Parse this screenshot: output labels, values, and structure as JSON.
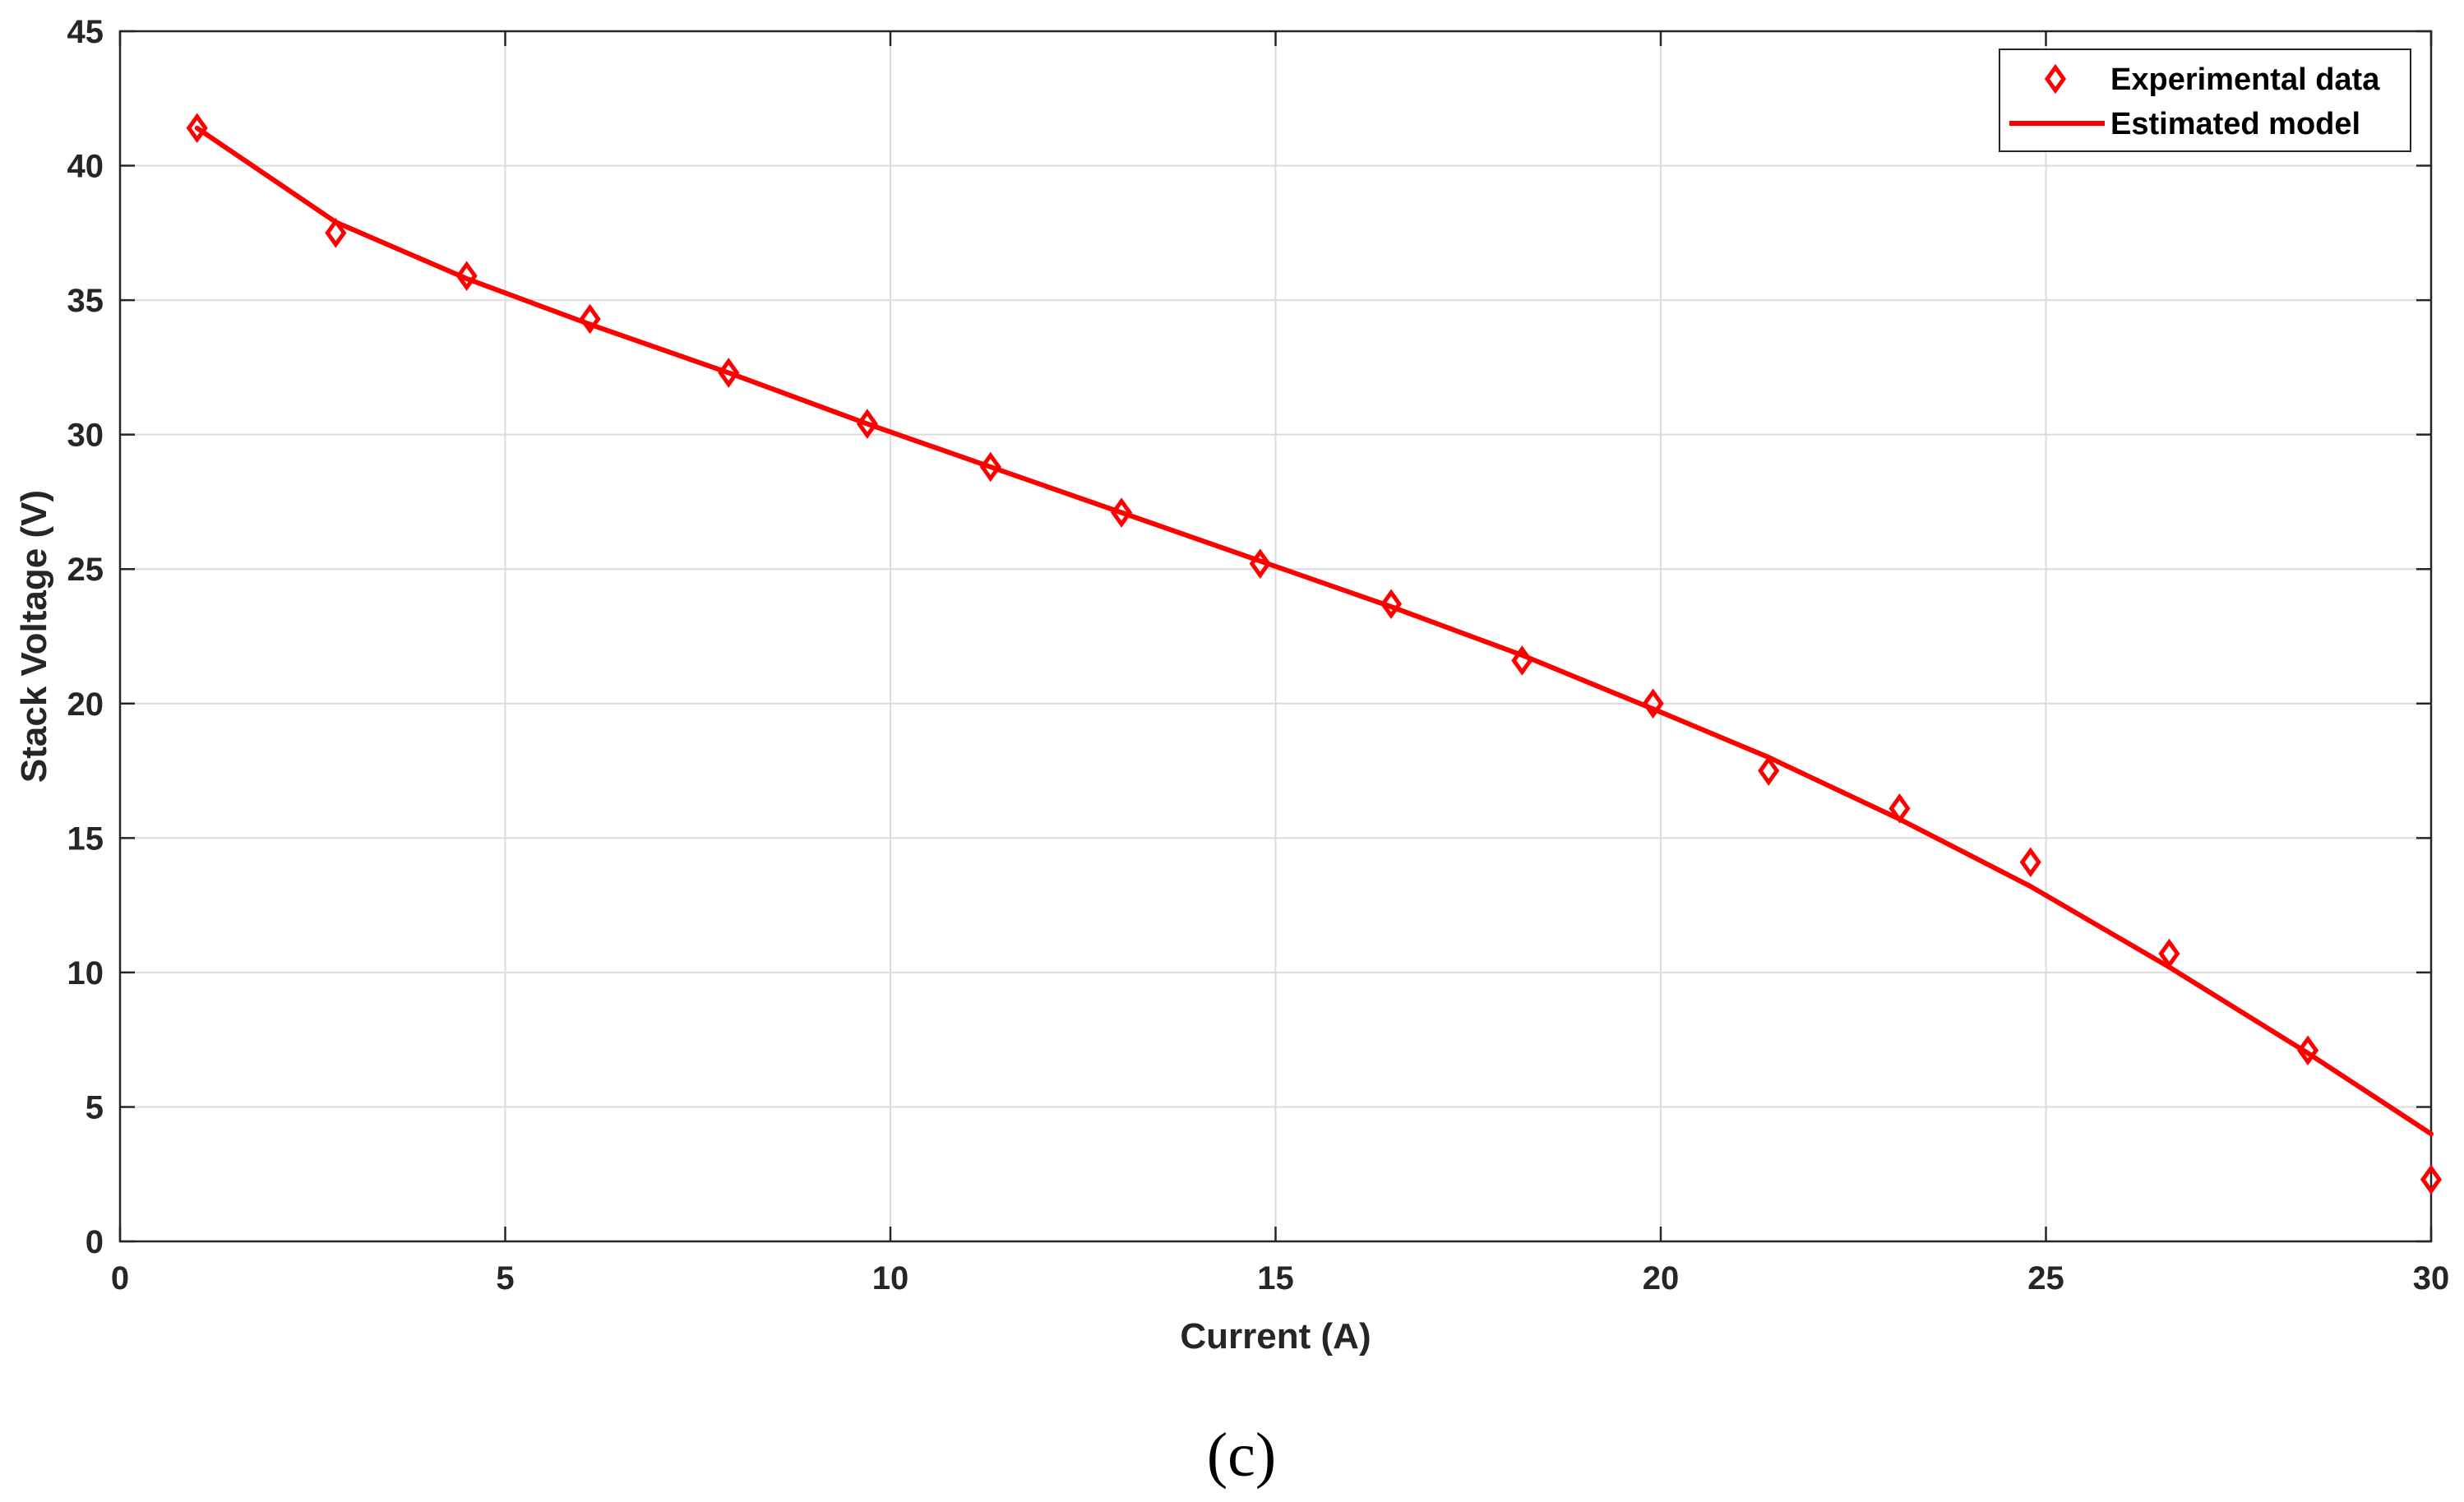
{
  "chart_data": {
    "type": "line",
    "xlabel": "Current (A)",
    "ylabel": "Stack Voltage (V)",
    "xlim": [
      0,
      30
    ],
    "ylim": [
      0,
      45
    ],
    "xticks": [
      0,
      5,
      10,
      15,
      20,
      25,
      30
    ],
    "yticks": [
      0,
      5,
      10,
      15,
      20,
      25,
      30,
      35,
      40,
      45
    ],
    "grid": true,
    "legend_position": "top-right",
    "series": [
      {
        "name": "Experimental data",
        "style": "markers",
        "marker": "diamond",
        "color": "#ff0000",
        "x": [
          1.0,
          2.8,
          4.5,
          6.1,
          7.9,
          9.7,
          11.3,
          13.0,
          14.8,
          16.5,
          18.2,
          19.9,
          21.4,
          23.1,
          24.8,
          26.6,
          28.4,
          30.0
        ],
        "y": [
          41.4,
          37.5,
          35.9,
          34.3,
          32.3,
          30.4,
          28.8,
          27.1,
          25.2,
          23.7,
          21.6,
          20.0,
          17.5,
          16.1,
          14.1,
          10.7,
          7.1,
          2.3
        ]
      },
      {
        "name": "Estimated model",
        "style": "line",
        "color": "#ff0000",
        "x": [
          1.0,
          2.8,
          4.5,
          6.1,
          7.9,
          9.7,
          11.3,
          13.0,
          14.8,
          16.5,
          18.2,
          19.9,
          21.4,
          23.1,
          24.8,
          26.6,
          28.4,
          30.0
        ],
        "y": [
          41.4,
          37.9,
          35.8,
          34.1,
          32.3,
          30.4,
          28.8,
          27.1,
          25.3,
          23.6,
          21.8,
          19.8,
          18.0,
          15.7,
          13.2,
          10.2,
          7.0,
          4.0
        ]
      }
    ]
  },
  "caption": "(c)"
}
